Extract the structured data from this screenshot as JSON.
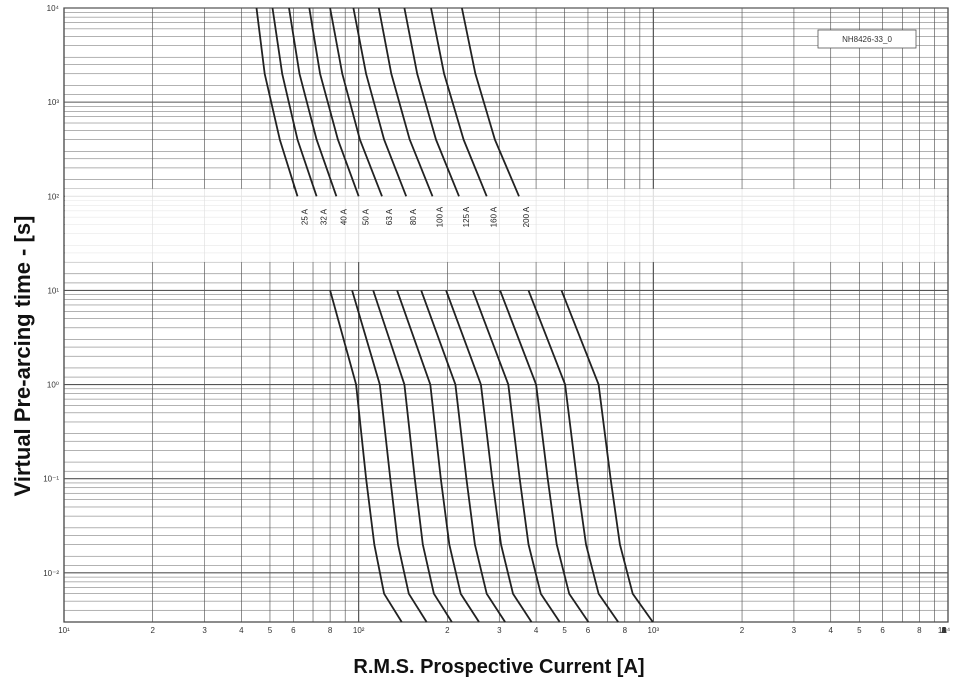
{
  "chart_data": {
    "type": "line",
    "title": "",
    "xlabel": "R.M.S. Prospective Current [A]",
    "ylabel": "Virtual Pre-arcing time - [s]",
    "x_scale": "log",
    "y_scale": "log",
    "xlim": [
      10,
      10000
    ],
    "ylim": [
      0.003,
      10000
    ],
    "grid": true,
    "legend": {
      "label": "NH8426-33_0",
      "placement": "top-right"
    },
    "x_tick_labels": [
      "10¹",
      "2",
      "3",
      "4",
      "5",
      "6",
      "8",
      "10²",
      "2",
      "3",
      "4",
      "5",
      "6",
      "8",
      "10³",
      "2",
      "3",
      "4",
      "5",
      "6",
      "8",
      "10⁴",
      "A",
      "2",
      "3",
      "4",
      "5",
      "6",
      "8",
      "1"
    ],
    "y_tick_labels": [
      "10⁴",
      "10³",
      "10²",
      "10¹",
      "10⁰",
      "10⁻¹",
      "10⁻²"
    ],
    "series": [
      {
        "name": "25 A",
        "x": [
          45.0,
          48.0,
          54.0,
          62.0,
          80.0,
          98.0,
          106.0,
          113.0,
          122.0,
          140.0
        ],
        "y": [
          10000,
          2000,
          400,
          100,
          10,
          1.0,
          0.1,
          0.02,
          0.006,
          0.003
        ]
      },
      {
        "name": "32 A",
        "x": [
          51.0,
          55.0,
          62.0,
          72.0,
          95.0,
          118.0,
          128.0,
          136.0,
          148.0,
          170.0
        ],
        "y": [
          10000,
          2000,
          400,
          100,
          10,
          1.0,
          0.1,
          0.02,
          0.006,
          0.003
        ]
      },
      {
        "name": "40 A",
        "x": [
          58.0,
          63.0,
          72.0,
          84.0,
          112.0,
          143.0,
          155.0,
          165.0,
          180.0,
          207.0
        ],
        "y": [
          10000,
          2000,
          400,
          100,
          10,
          1.0,
          0.1,
          0.02,
          0.006,
          0.003
        ]
      },
      {
        "name": "50 A",
        "x": [
          68.0,
          74.0,
          85.0,
          100.0,
          135.0,
          175.0,
          190.0,
          203.0,
          222.0,
          256.0
        ],
        "y": [
          10000,
          2000,
          400,
          100,
          10,
          1.0,
          0.1,
          0.02,
          0.006,
          0.003
        ]
      },
      {
        "name": "63 A",
        "x": [
          80.0,
          88.0,
          101.0,
          120.0,
          163.0,
          213.0,
          232.0,
          248.0,
          272.0,
          314.0
        ],
        "y": [
          10000,
          2000,
          400,
          100,
          10,
          1.0,
          0.1,
          0.02,
          0.006,
          0.003
        ]
      },
      {
        "name": "80 A",
        "x": [
          96.0,
          106.0,
          122.0,
          145.0,
          198.0,
          260.0,
          284.0,
          304.0,
          334.0,
          386.0
        ],
        "y": [
          10000,
          2000,
          400,
          100,
          10,
          1.0,
          0.1,
          0.02,
          0.006,
          0.003
        ]
      },
      {
        "name": "100 A",
        "x": [
          117.0,
          129.0,
          149.0,
          178.0,
          244.0,
          322.0,
          352.0,
          377.0,
          415.0,
          481.0
        ],
        "y": [
          10000,
          2000,
          400,
          100,
          10,
          1.0,
          0.1,
          0.02,
          0.006,
          0.003
        ]
      },
      {
        "name": "125 A",
        "x": [
          143.0,
          158.0,
          183.0,
          219.0,
          302.0,
          400.0,
          438.0,
          470.0,
          518.0,
          602.0
        ],
        "y": [
          10000,
          2000,
          400,
          100,
          10,
          1.0,
          0.1,
          0.02,
          0.006,
          0.003
        ]
      },
      {
        "name": "160 A",
        "x": [
          176.0,
          195.0,
          227.0,
          272.0,
          377.0,
          502.0,
          550.0,
          591.0,
          652.0,
          760.0
        ],
        "y": [
          10000,
          2000,
          400,
          100,
          10,
          1.0,
          0.1,
          0.02,
          0.006,
          0.003
        ]
      },
      {
        "name": "200 A",
        "x": [
          224.0,
          249.0,
          290.0,
          350.0,
          488.0,
          652.0,
          716.0,
          770.0,
          851.0,
          996.0
        ],
        "y": [
          10000,
          2000,
          400,
          100,
          10,
          1.0,
          0.1,
          0.02,
          0.006,
          0.003
        ]
      }
    ]
  }
}
